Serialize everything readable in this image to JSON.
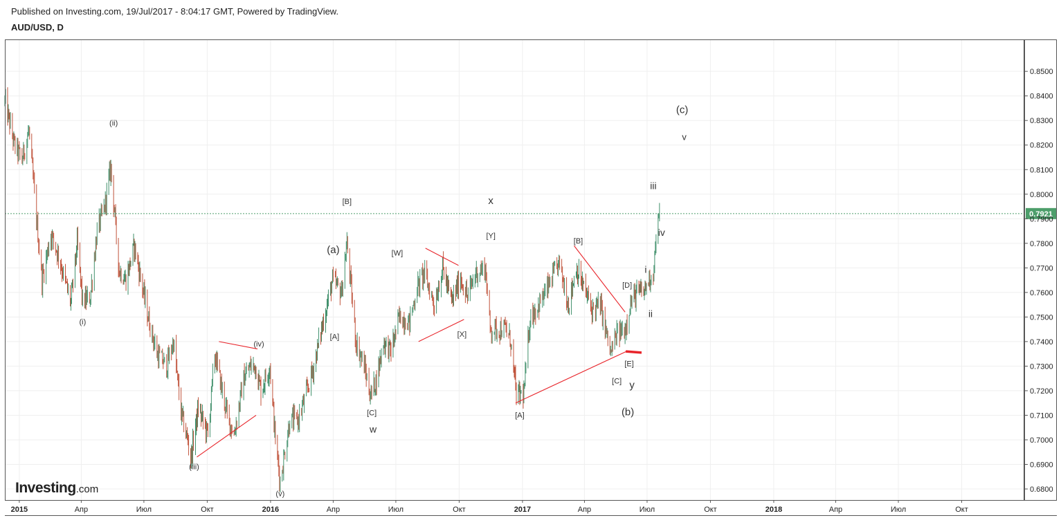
{
  "header": {
    "published": "Published on Investing.com, 19/Jul/2017 - 8:04:17 GMT, Powered by TradingView.",
    "symbol": "AUD/USD, D"
  },
  "logo": {
    "brand": "Investing",
    "suffix": ".com"
  },
  "colors": {
    "up": "#3f8f6a",
    "down": "#c0533b",
    "annotation": "#e8242a",
    "grid": "#efefef",
    "last_price_bg": "#4d9e6b",
    "last_price_line": "#4d9e6b"
  },
  "chart_data": {
    "type": "candlestick",
    "title": "AUD/USD, D",
    "y_range": [
      0.6755,
      0.863
    ],
    "y_ticks": [
      "0.8500",
      "0.8400",
      "0.8300",
      "0.8200",
      "0.8100",
      "0.8000",
      "0.7900",
      "0.7800",
      "0.7700",
      "0.7600",
      "0.7500",
      "0.7400",
      "0.7300",
      "0.7200",
      "0.7100",
      "0.7000",
      "0.6900",
      "0.6800"
    ],
    "x_range": [
      "2014-12-11",
      "2018-12-31"
    ],
    "x_ticks": [
      {
        "date": "2015-01-01",
        "label": "2015",
        "bold": true
      },
      {
        "date": "2015-04-01",
        "label": "Апр"
      },
      {
        "date": "2015-07-01",
        "label": "Июл"
      },
      {
        "date": "2015-10-01",
        "label": "Окт"
      },
      {
        "date": "2016-01-01",
        "label": "2016",
        "bold": true
      },
      {
        "date": "2016-04-01",
        "label": "Апр"
      },
      {
        "date": "2016-07-01",
        "label": "Июл"
      },
      {
        "date": "2016-10-01",
        "label": "Окт"
      },
      {
        "date": "2017-01-01",
        "label": "2017",
        "bold": true
      },
      {
        "date": "2017-04-01",
        "label": "Апр"
      },
      {
        "date": "2017-07-01",
        "label": "Июл"
      },
      {
        "date": "2017-10-01",
        "label": "Окт"
      },
      {
        "date": "2018-01-01",
        "label": "2018",
        "bold": true
      },
      {
        "date": "2018-04-01",
        "label": "Апр"
      },
      {
        "date": "2018-07-01",
        "label": "Июл"
      },
      {
        "date": "2018-10-01",
        "label": "Окт"
      }
    ],
    "last_price": "0.7921",
    "price_path": [
      [
        "2014-12-11",
        0.838
      ],
      [
        "2014-12-25",
        0.82
      ],
      [
        "2015-01-05",
        0.814
      ],
      [
        "2015-01-15",
        0.826
      ],
      [
        "2015-01-26",
        0.79
      ],
      [
        "2015-02-03",
        0.765
      ],
      [
        "2015-02-16",
        0.784
      ],
      [
        "2015-02-27",
        0.775
      ],
      [
        "2015-03-10",
        0.763
      ],
      [
        "2015-03-17",
        0.756
      ],
      [
        "2015-03-26",
        0.78
      ],
      [
        "2015-04-03",
        0.756
      ],
      [
        "2015-04-14",
        0.758
      ],
      [
        "2015-04-24",
        0.785
      ],
      [
        "2015-05-05",
        0.795
      ],
      [
        "2015-05-14",
        0.811
      ],
      [
        "2015-05-26",
        0.769
      ],
      [
        "2015-06-05",
        0.765
      ],
      [
        "2015-06-17",
        0.779
      ],
      [
        "2015-06-29",
        0.762
      ],
      [
        "2015-07-07",
        0.75
      ],
      [
        "2015-07-20",
        0.735
      ],
      [
        "2015-08-03",
        0.73
      ],
      [
        "2015-08-13",
        0.74
      ],
      [
        "2015-08-24",
        0.711
      ],
      [
        "2015-09-04",
        0.698
      ],
      [
        "2015-09-07",
        0.692
      ],
      [
        "2015-09-18",
        0.713
      ],
      [
        "2015-10-02",
        0.702
      ],
      [
        "2015-10-12",
        0.735
      ],
      [
        "2015-10-30",
        0.71
      ],
      [
        "2015-11-09",
        0.702
      ],
      [
        "2015-11-23",
        0.725
      ],
      [
        "2015-12-03",
        0.73
      ],
      [
        "2015-12-10",
        0.73
      ],
      [
        "2015-12-18",
        0.72
      ],
      [
        "2015-12-31",
        0.73
      ],
      [
        "2016-01-08",
        0.7
      ],
      [
        "2016-01-15",
        0.683
      ],
      [
        "2016-01-29",
        0.708
      ],
      [
        "2016-02-10",
        0.708
      ],
      [
        "2016-02-19",
        0.716
      ],
      [
        "2016-03-03",
        0.729
      ],
      [
        "2016-03-15",
        0.745
      ],
      [
        "2016-03-31",
        0.765
      ],
      [
        "2016-04-13",
        0.76
      ],
      [
        "2016-04-21",
        0.78
      ],
      [
        "2016-05-04",
        0.74
      ],
      [
        "2016-05-16",
        0.73
      ],
      [
        "2016-05-25",
        0.718
      ],
      [
        "2016-06-03",
        0.725
      ],
      [
        "2016-06-13",
        0.74
      ],
      [
        "2016-06-24",
        0.736
      ],
      [
        "2016-07-06",
        0.75
      ],
      [
        "2016-07-21",
        0.748
      ],
      [
        "2016-08-01",
        0.762
      ],
      [
        "2016-08-11",
        0.768
      ],
      [
        "2016-08-26",
        0.755
      ],
      [
        "2016-09-07",
        0.77
      ],
      [
        "2016-09-20",
        0.756
      ],
      [
        "2016-10-03",
        0.766
      ],
      [
        "2016-10-13",
        0.758
      ],
      [
        "2016-10-25",
        0.768
      ],
      [
        "2016-11-08",
        0.77
      ],
      [
        "2016-11-15",
        0.745
      ],
      [
        "2016-11-28",
        0.745
      ],
      [
        "2016-12-08",
        0.745
      ],
      [
        "2016-12-15",
        0.74
      ],
      [
        "2016-12-23",
        0.718
      ],
      [
        "2017-01-03",
        0.719
      ],
      [
        "2017-01-12",
        0.75
      ],
      [
        "2017-01-25",
        0.755
      ],
      [
        "2017-02-07",
        0.762
      ],
      [
        "2017-02-23",
        0.772
      ],
      [
        "2017-03-09",
        0.755
      ],
      [
        "2017-03-20",
        0.77
      ],
      [
        "2017-03-31",
        0.762
      ],
      [
        "2017-04-12",
        0.753
      ],
      [
        "2017-04-24",
        0.755
      ],
      [
        "2017-05-09",
        0.735
      ],
      [
        "2017-05-18",
        0.743
      ],
      [
        "2017-05-30",
        0.745
      ],
      [
        "2017-06-06",
        0.755
      ],
      [
        "2017-06-16",
        0.76
      ],
      [
        "2017-06-26",
        0.76
      ],
      [
        "2017-07-03",
        0.765
      ],
      [
        "2017-07-10",
        0.768
      ],
      [
        "2017-07-14",
        0.782
      ],
      [
        "2017-07-19",
        0.7921
      ]
    ]
  },
  "annotations": {
    "labels": [
      {
        "text": "(i)",
        "date": "2015-04-03",
        "price": 0.747,
        "size": 11
      },
      {
        "text": "(ii)",
        "date": "2015-05-18",
        "price": 0.828,
        "size": 11
      },
      {
        "text": "(iii)",
        "date": "2015-09-12",
        "price": 0.688,
        "size": 11
      },
      {
        "text": "(iv)",
        "date": "2015-12-15",
        "price": 0.738,
        "size": 11
      },
      {
        "text": "(v)",
        "date": "2016-01-15",
        "price": 0.677,
        "size": 11
      },
      {
        "text": "(a)",
        "date": "2016-04-01",
        "price": 0.776,
        "size": 15
      },
      {
        "text": "[B]",
        "date": "2016-04-21",
        "price": 0.796,
        "size": 11
      },
      {
        "text": "[A]",
        "date": "2016-04-03",
        "price": 0.741,
        "size": 11
      },
      {
        "text": "[C]",
        "date": "2016-05-27",
        "price": 0.71,
        "size": 11
      },
      {
        "text": "w",
        "date": "2016-05-29",
        "price": 0.703,
        "size": 14
      },
      {
        "text": "[W]",
        "date": "2016-07-03",
        "price": 0.775,
        "size": 11
      },
      {
        "text": "[X]",
        "date": "2016-10-05",
        "price": 0.742,
        "size": 11
      },
      {
        "text": "[Y]",
        "date": "2016-11-16",
        "price": 0.782,
        "size": 11
      },
      {
        "text": "x",
        "date": "2016-11-16",
        "price": 0.796,
        "size": 15
      },
      {
        "text": "[A]",
        "date": "2016-12-28",
        "price": 0.709,
        "size": 11
      },
      {
        "text": "[B]",
        "date": "2017-03-23",
        "price": 0.78,
        "size": 11
      },
      {
        "text": "[D]",
        "date": "2017-06-02",
        "price": 0.762,
        "size": 11
      },
      {
        "text": "[C]",
        "date": "2017-05-18",
        "price": 0.723,
        "size": 11
      },
      {
        "text": "[E]",
        "date": "2017-06-05",
        "price": 0.73,
        "size": 11
      },
      {
        "text": "y",
        "date": "2017-06-09",
        "price": 0.721,
        "size": 15
      },
      {
        "text": "(b)",
        "date": "2017-06-03",
        "price": 0.71,
        "size": 15
      },
      {
        "text": "i",
        "date": "2017-06-29",
        "price": 0.768,
        "size": 14
      },
      {
        "text": "ii",
        "date": "2017-07-06",
        "price": 0.75,
        "size": 14
      },
      {
        "text": "iii",
        "date": "2017-07-10",
        "price": 0.802,
        "size": 14
      },
      {
        "text": "iv",
        "date": "2017-07-22",
        "price": 0.783,
        "size": 14
      },
      {
        "text": "(c)",
        "date": "2017-08-21",
        "price": 0.833,
        "size": 15
      },
      {
        "text": "v",
        "date": "2017-08-24",
        "price": 0.822,
        "size": 13
      }
    ],
    "lines": [
      {
        "from": [
          "2015-09-16",
          0.693
        ],
        "to": [
          "2015-12-11",
          0.71
        ],
        "width": 1.1
      },
      {
        "from": [
          "2015-10-18",
          0.74
        ],
        "to": [
          "2015-12-13",
          0.737
        ],
        "width": 1.1
      },
      {
        "from": [
          "2016-08-03",
          0.74
        ],
        "to": [
          "2016-10-08",
          0.749
        ],
        "width": 1.1
      },
      {
        "from": [
          "2016-08-13",
          0.778
        ],
        "to": [
          "2016-09-30",
          0.771
        ],
        "width": 1.1
      },
      {
        "from": [
          "2016-12-22",
          0.715
        ],
        "to": [
          "2017-06-01",
          0.736
        ],
        "width": 1.1
      },
      {
        "from": [
          "2017-03-17",
          0.779
        ],
        "to": [
          "2017-05-30",
          0.752
        ],
        "width": 1.1
      },
      {
        "from": [
          "2017-05-31",
          0.736
        ],
        "to": [
          "2017-06-23",
          0.7355
        ],
        "width": 3.5
      }
    ]
  }
}
